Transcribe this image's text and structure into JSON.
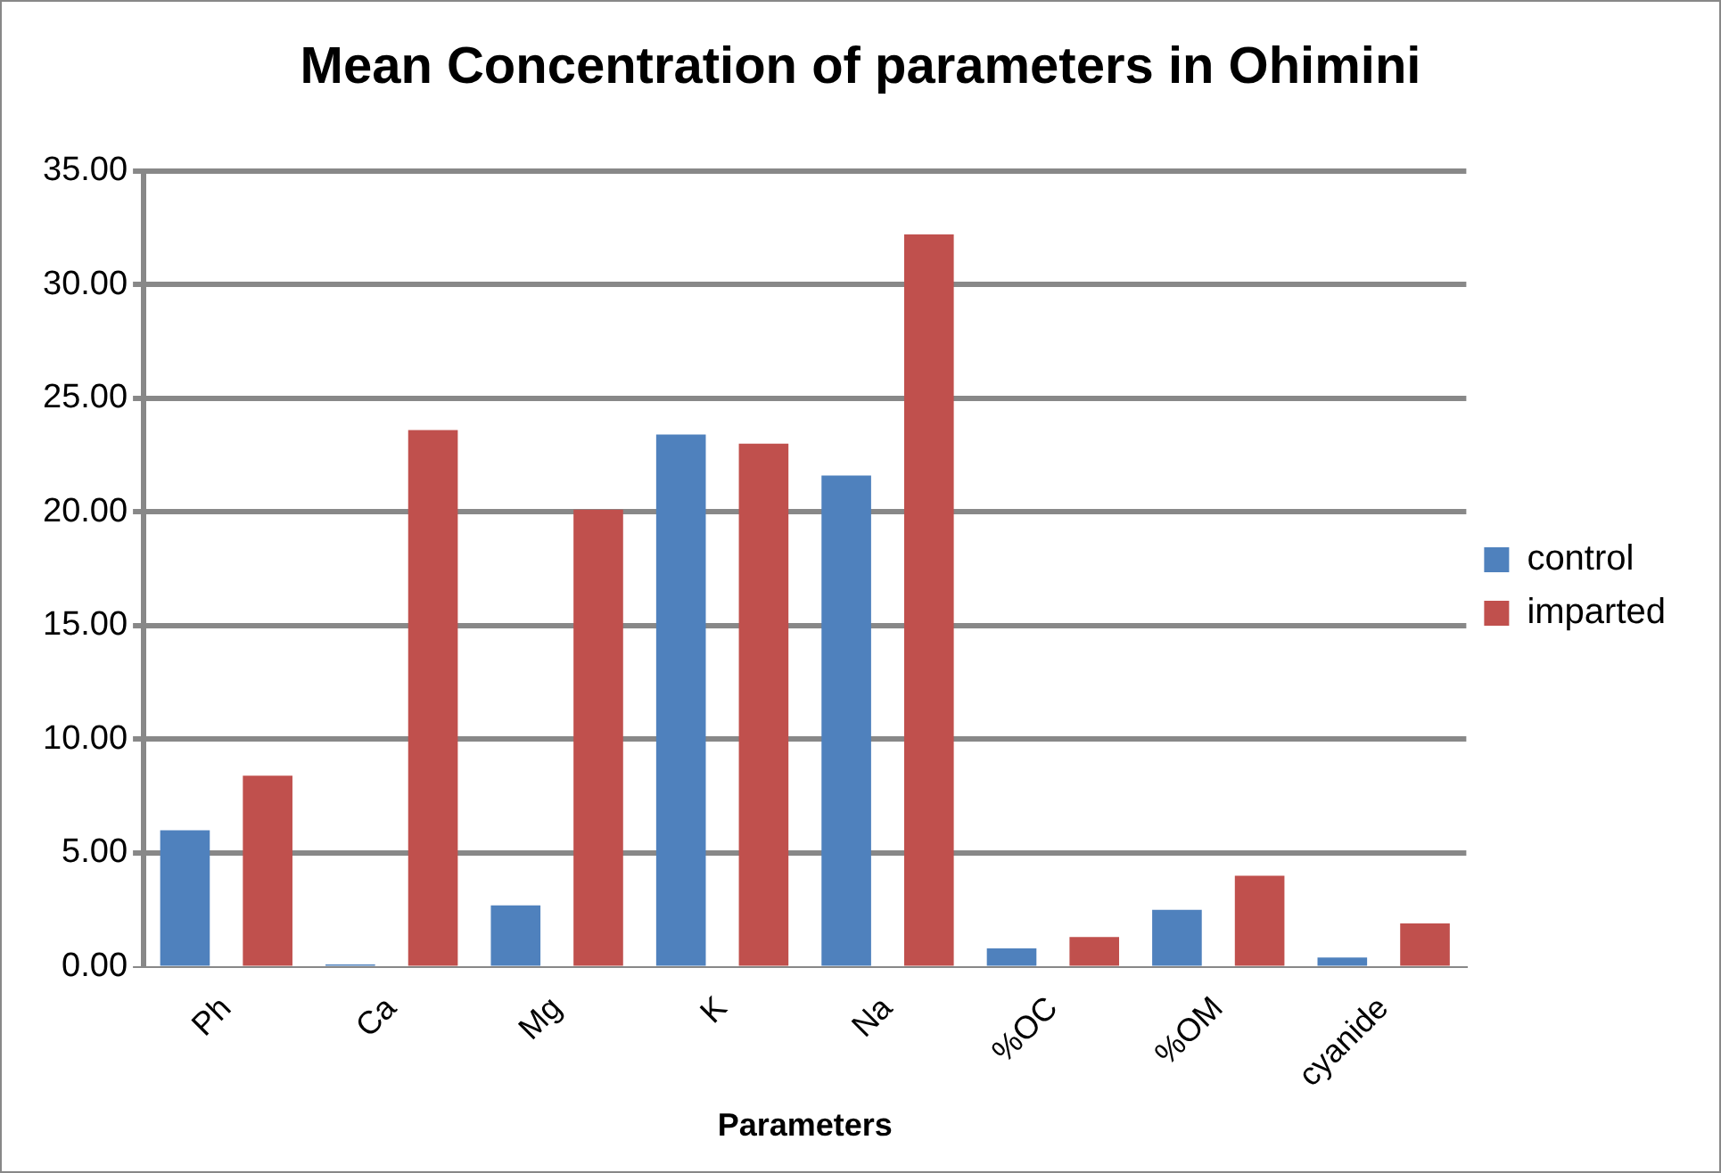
{
  "chart_data": {
    "type": "bar",
    "title": "Mean Concentration of parameters in Ohimini",
    "xlabel": "Parameters",
    "categories": [
      "Ph",
      "Ca",
      "Mg",
      "K",
      "Na",
      "%OC",
      "%OM",
      "cyanide"
    ],
    "series": [
      {
        "name": "control",
        "color": "#4f81bd",
        "values": [
          6.0,
          0.1,
          2.7,
          23.4,
          21.6,
          0.8,
          2.5,
          0.4
        ]
      },
      {
        "name": "imparted",
        "color": "#c0504d",
        "values": [
          8.4,
          23.6,
          20.1,
          23.0,
          32.2,
          1.3,
          4.0,
          1.9
        ]
      }
    ],
    "ylim": [
      0,
      35
    ],
    "yticks": [
      {
        "value": 0,
        "label": "0.00"
      },
      {
        "value": 5,
        "label": "5.00"
      },
      {
        "value": 10,
        "label": "10.00"
      },
      {
        "value": 15,
        "label": "15.00"
      },
      {
        "value": 20,
        "label": "20.00"
      },
      {
        "value": 25,
        "label": "25.00"
      },
      {
        "value": 30,
        "label": "30.00"
      },
      {
        "value": 35,
        "label": "35.00"
      }
    ],
    "grid": "y",
    "legend": "right"
  }
}
